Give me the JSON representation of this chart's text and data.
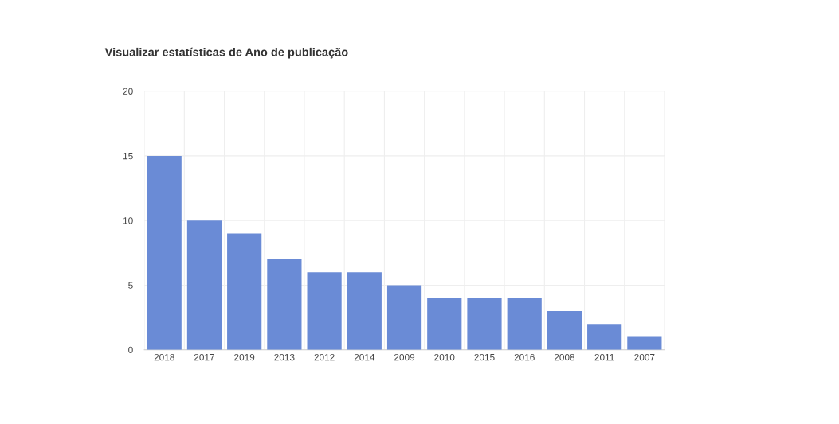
{
  "chart_data": {
    "type": "bar",
    "title": "Visualizar estatísticas de Ano de publicação",
    "categories": [
      "2018",
      "2017",
      "2019",
      "2013",
      "2012",
      "2014",
      "2009",
      "2010",
      "2015",
      "2016",
      "2008",
      "2011",
      "2007"
    ],
    "values": [
      15,
      10,
      9,
      7,
      6,
      6,
      5,
      4,
      4,
      4,
      3,
      2,
      1
    ],
    "color": "#6a8bd6",
    "ylim": [
      0,
      20
    ],
    "yticks": [
      0,
      5,
      10,
      15,
      20
    ],
    "grid": true
  }
}
